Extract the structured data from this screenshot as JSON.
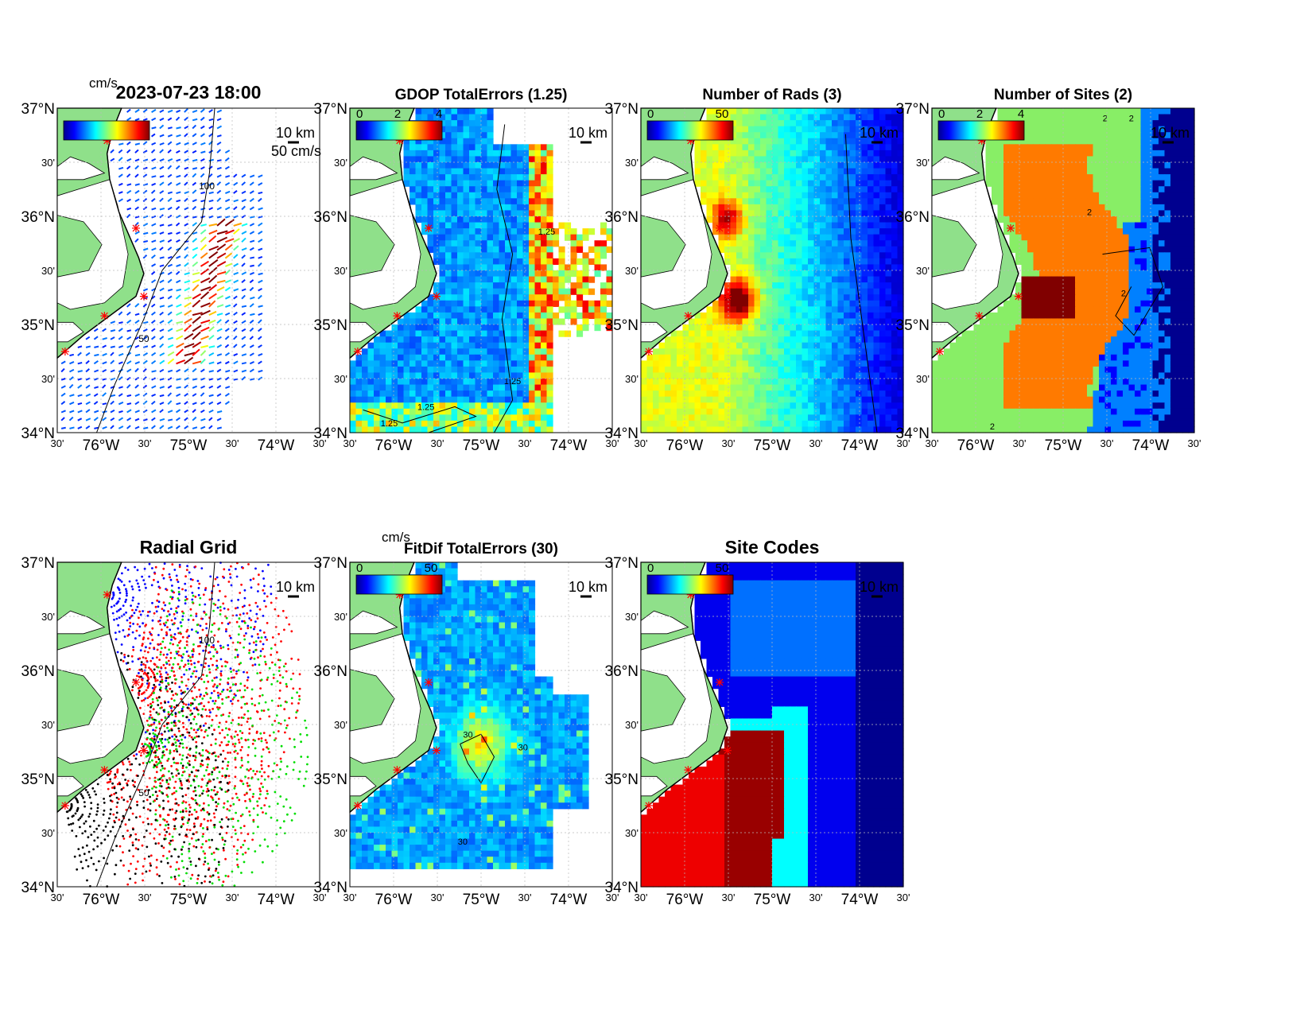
{
  "figure": {
    "lat_labels": [
      "37°N",
      "30'",
      "36°N",
      "30'",
      "35°N",
      "30'",
      "34°N"
    ],
    "lon_labels": [
      "30'",
      "76°W",
      "30'",
      "75°W",
      "30'",
      "74°W",
      "30'"
    ],
    "scale_label": "10 km",
    "colors": {
      "land": "#8fe08a",
      "coast": "#000000",
      "site_marker": "#ff0000",
      "grid": "#bbbbbb"
    }
  },
  "panels": [
    {
      "id": "currents",
      "title": "2023-07-23 18:00",
      "colorbar_unit": "cm/s",
      "colorbar_ticks": [],
      "vector_scale_label": "50 cm/s",
      "contour_labels": [
        "100",
        "50"
      ]
    },
    {
      "id": "gdop",
      "title": "GDOP TotalErrors (1.25)",
      "colorbar_unit": "",
      "colorbar_ticks": [
        "0",
        "2",
        "4"
      ],
      "contour_labels": [
        "1.25",
        "1.25",
        "1.25",
        "1.25"
      ]
    },
    {
      "id": "rads",
      "title": "Number of Rads (3)",
      "colorbar_unit": "",
      "colorbar_ticks": [
        "0",
        "50"
      ],
      "contour_labels": []
    },
    {
      "id": "sites",
      "title": "Number of Sites (2)",
      "colorbar_unit": "",
      "colorbar_ticks": [
        "0",
        "2",
        "4"
      ],
      "contour_labels": [
        "2",
        "2",
        "2",
        "2",
        "2"
      ]
    },
    {
      "id": "radial",
      "title": "Radial Grid",
      "colorbar_unit": "",
      "colorbar_ticks": [],
      "contour_labels": [
        "100",
        "50"
      ]
    },
    {
      "id": "fitdif",
      "title": "FitDif TotalErrors (30)",
      "colorbar_unit": "cm/s",
      "colorbar_ticks": [
        "0",
        "50"
      ],
      "contour_labels": [
        "30",
        "30",
        "30"
      ]
    },
    {
      "id": "codes",
      "title": "Site Codes",
      "colorbar_unit": "",
      "colorbar_ticks": [
        "0",
        "50"
      ],
      "contour_labels": []
    }
  ]
}
